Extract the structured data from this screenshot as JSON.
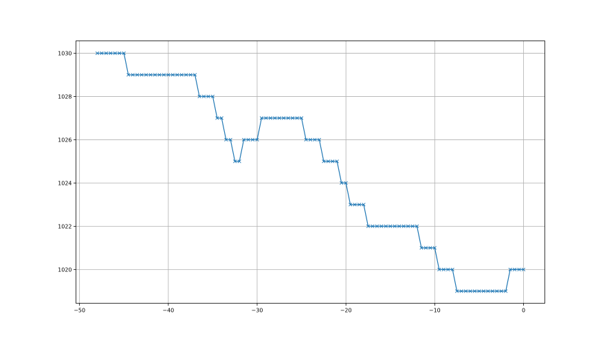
{
  "chart_data": {
    "type": "line",
    "title": "",
    "xlabel": "",
    "ylabel": "",
    "xlim": [
      -50.4,
      2.4
    ],
    "ylim": [
      1018.44,
      1030.57
    ],
    "grid": true,
    "x_ticks": [
      -50,
      -40,
      -30,
      -20,
      -10,
      0
    ],
    "x_tick_labels": [
      "−50",
      "−40",
      "−30",
      "−20",
      "−10",
      "0"
    ],
    "y_ticks": [
      1020,
      1022,
      1024,
      1026,
      1028,
      1030
    ],
    "y_tick_labels": [
      "1020",
      "1022",
      "1024",
      "1026",
      "1028",
      "1030"
    ],
    "marker": "x",
    "color": "#1f77b4",
    "series": [
      {
        "x": [
          -48,
          -47.5,
          -47,
          -46.5,
          -46,
          -45.5,
          -45,
          -44.5,
          -44,
          -43.5,
          -43,
          -42.5,
          -42,
          -41.5,
          -41,
          -40.5,
          -40,
          -39.5,
          -39,
          -38.5,
          -38,
          -37.5,
          -37,
          -36.5,
          -36,
          -35.5,
          -35,
          -34.5,
          -34,
          -33.5,
          -33,
          -32.5,
          -32,
          -31.5,
          -31,
          -30.5,
          -30,
          -29.5,
          -29,
          -28.5,
          -28,
          -27.5,
          -27,
          -26.5,
          -26,
          -25.5,
          -25,
          -24.5,
          -24,
          -23.5,
          -23,
          -22.5,
          -22,
          -21.5,
          -21,
          -20.5,
          -20,
          -19.5,
          -19,
          -18.5,
          -18,
          -17.5,
          -17,
          -16.5,
          -16,
          -15.5,
          -15,
          -14.5,
          -14,
          -13.5,
          -13,
          -12.5,
          -12,
          -11.5,
          -11,
          -10.5,
          -10,
          -9.5,
          -9,
          -8.5,
          -8,
          -7.5,
          -7,
          -6.5,
          -6,
          -5.5,
          -5,
          -4.5,
          -4,
          -3.5,
          -3,
          -2.5,
          -2,
          -1.5,
          -1,
          -0.5,
          0
        ],
        "y": [
          1030,
          1030,
          1030,
          1030,
          1030,
          1030,
          1030,
          1029,
          1029,
          1029,
          1029,
          1029,
          1029,
          1029,
          1029,
          1029,
          1029,
          1029,
          1029,
          1029,
          1029,
          1029,
          1029,
          1028,
          1028,
          1028,
          1028,
          1027,
          1027,
          1026,
          1026,
          1025,
          1025,
          1026,
          1026,
          1026,
          1026,
          1027,
          1027,
          1027,
          1027,
          1027,
          1027,
          1027,
          1027,
          1027,
          1027,
          1026,
          1026,
          1026,
          1026,
          1025,
          1025,
          1025,
          1025,
          1024,
          1024,
          1023,
          1023,
          1023,
          1023,
          1022,
          1022,
          1022,
          1022,
          1022,
          1022,
          1022,
          1022,
          1022,
          1022,
          1022,
          1022,
          1021,
          1021,
          1021,
          1021,
          1020,
          1020,
          1020,
          1020,
          1019,
          1019,
          1019,
          1019,
          1019,
          1019,
          1019,
          1019,
          1019,
          1019,
          1019,
          1019,
          1020,
          1020,
          1020,
          1020
        ]
      }
    ]
  }
}
